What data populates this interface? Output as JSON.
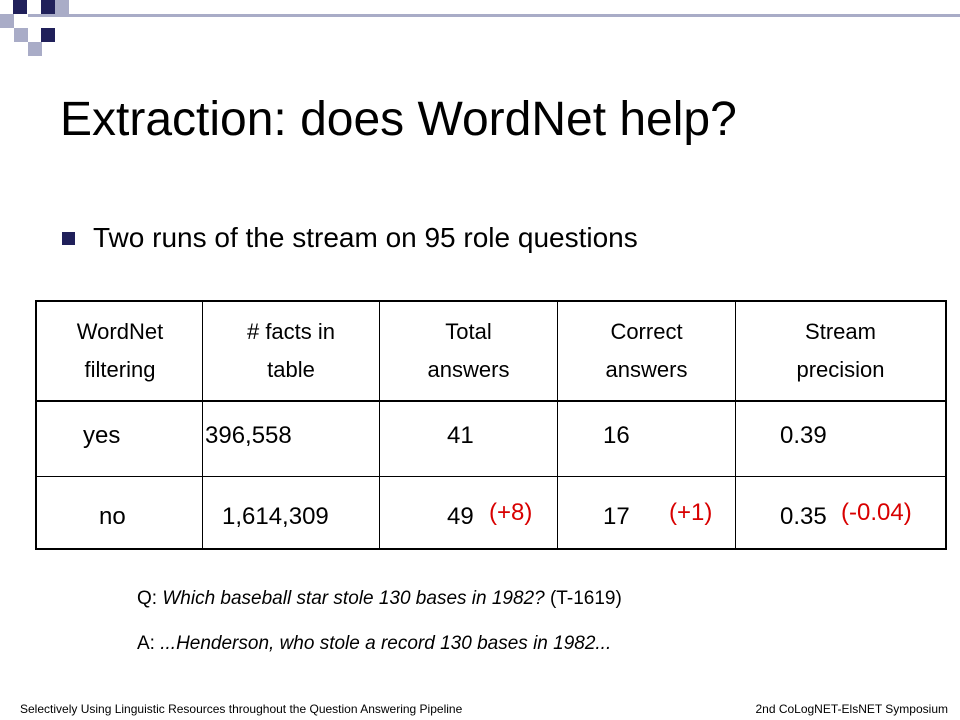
{
  "decor": {
    "square_colors": [
      "#20205a",
      "#a9acc7"
    ]
  },
  "slide": {
    "title": "Extraction: does WordNet help?",
    "bullet": "Two runs of the stream on 95 role questions"
  },
  "table": {
    "headers": [
      [
        "WordNet",
        "filtering"
      ],
      [
        "# facts in",
        "table"
      ],
      [
        "Total",
        "answers"
      ],
      [
        "Correct",
        "answers"
      ],
      [
        "Stream",
        "precision"
      ]
    ],
    "rows": [
      {
        "filtering": "yes",
        "facts": "396,558",
        "total": "41",
        "correct": "16",
        "precision": "0.39"
      },
      {
        "filtering": "no",
        "facts": "1,614,309",
        "total": "49",
        "total_delta": "(+8)",
        "correct": "17",
        "correct_delta": "(+1)",
        "precision": "0.35",
        "precision_delta": "(-0.04)"
      }
    ],
    "delta_color": "#d80000"
  },
  "qa": {
    "q_prefix": "Q:",
    "q_text": "Which baseball star stole 130 bases in 1982?",
    "q_id": "(T-1619)",
    "a_prefix": "A:",
    "a_text": "...Henderson, who stole a record 130 bases in 1982..."
  },
  "footer": {
    "left": "Selectively Using Linguistic Resources throughout the Question Answering Pipeline",
    "right": "2nd CoLogNET-ElsNET Symposium"
  }
}
